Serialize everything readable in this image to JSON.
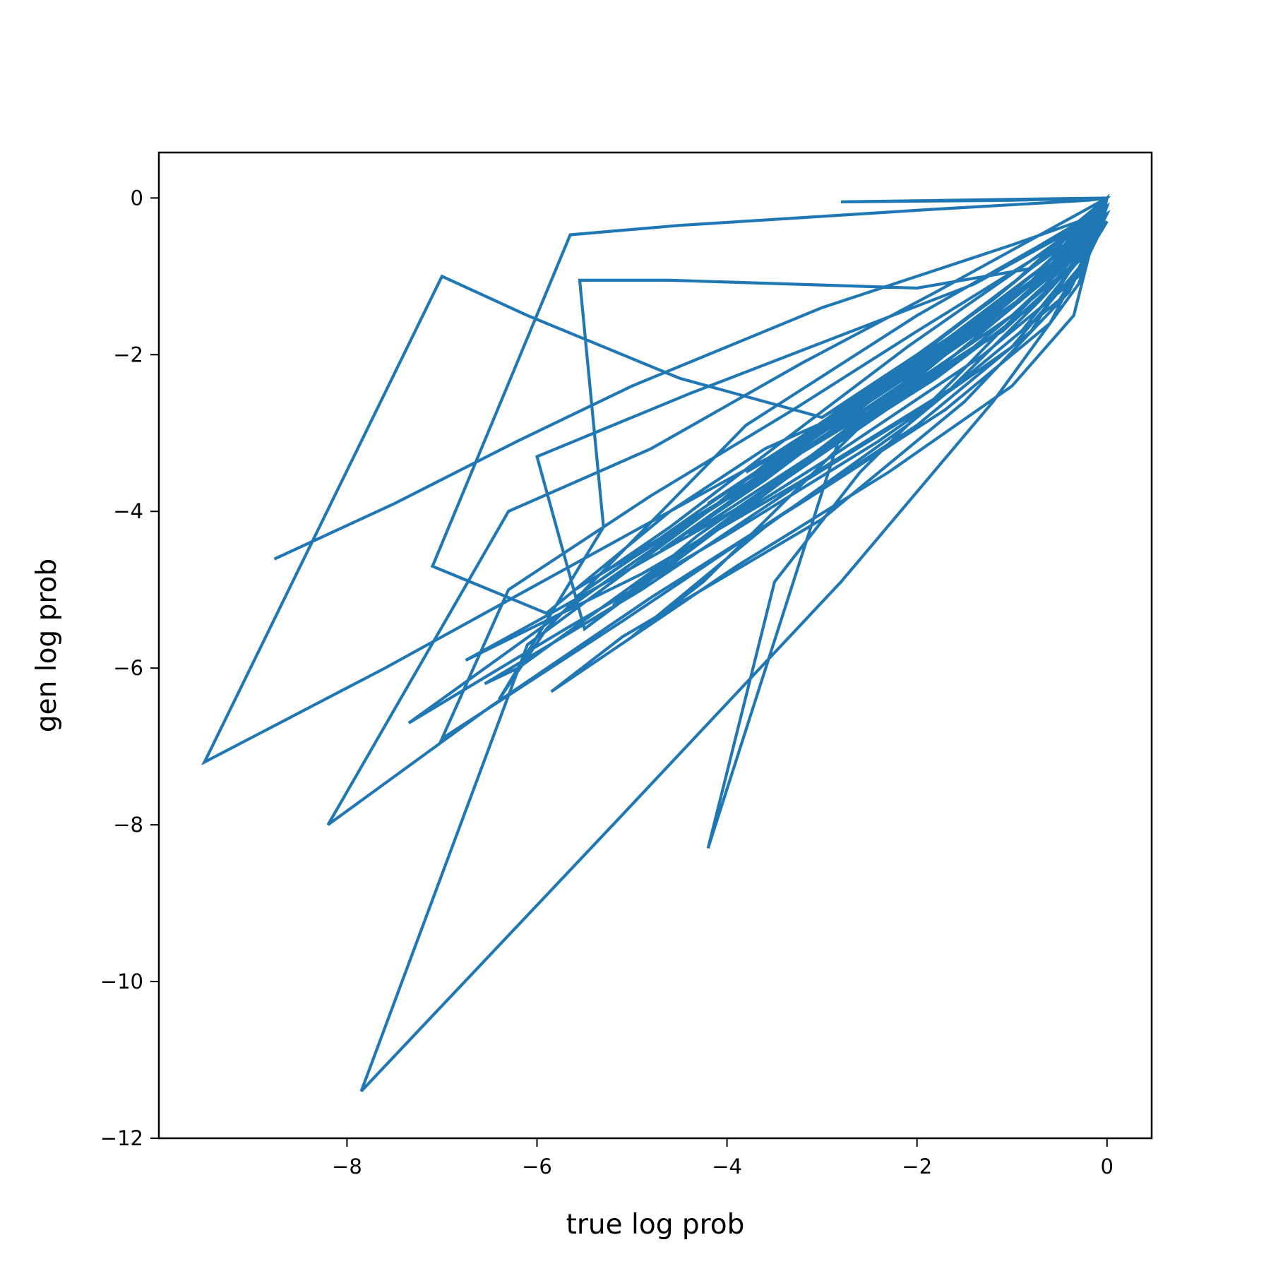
{
  "chart_data": {
    "type": "line",
    "title": "",
    "xlabel": "true log prob",
    "ylabel": "gen log prob",
    "xlim": [
      -9.98,
      0.47
    ],
    "ylim": [
      -12,
      0.58
    ],
    "x_ticks": [
      -8,
      -6,
      -4,
      -2,
      0
    ],
    "x_tick_labels": [
      "−8",
      "−6",
      "−4",
      "−2",
      "0"
    ],
    "y_ticks": [
      0,
      -2,
      -4,
      -6,
      -8,
      -10,
      -12
    ],
    "y_tick_labels": [
      "0",
      "−2",
      "−4",
      "−6",
      "−8",
      "−10",
      "−12"
    ],
    "grid": false,
    "legend": "none",
    "series": [
      {
        "color": "#1f77b4",
        "x": [
          -8.75,
          -7.5,
          -6.2,
          -5.0,
          -4.0,
          -3.0,
          -2.0,
          -1.0,
          -0.3,
          -0.1,
          0.0,
          -0.2,
          -0.7,
          -1.5,
          -2.5,
          -3.6,
          -4.6,
          -5.9,
          -7.1,
          -5.65,
          -4.5,
          -3.2,
          -1.9,
          -0.9,
          -0.2,
          0.0,
          -0.6,
          -1.8,
          -3.2,
          -4.8,
          -6.3,
          -8.2,
          -6.5,
          -4.8,
          -3.1,
          -1.7,
          -0.6,
          0.0,
          -0.4,
          -1.4,
          -2.8,
          -4.2,
          -3.5,
          -2.6,
          -1.6,
          -0.8,
          -0.1,
          0.0,
          -0.5,
          -1.5,
          -3.0,
          -4.5,
          -6.1,
          -7.0,
          -9.5,
          -7.6,
          -5.5,
          -3.7,
          -2.2,
          -1.0,
          -0.2,
          0.0,
          -0.9,
          -2.4,
          -4.2,
          -6.1,
          -7.85,
          -5.2,
          -2.8,
          -1.2,
          -0.3,
          0.0,
          -0.7,
          -2.0,
          -3.8,
          -5.9,
          -6.4,
          -5.3,
          -5.55,
          -4.6,
          -3.3,
          -2.0,
          -0.8,
          -0.1,
          -0.35,
          -1.0,
          -2.3,
          -3.9,
          -5.85,
          -5.1,
          -3.0,
          -1.5,
          -0.4,
          0.0,
          -0.8,
          -2.1,
          -3.3,
          -4.6,
          -5.2,
          -5.6,
          -4.1,
          -2.6,
          -1.1,
          -0.2,
          0.0,
          -0.6,
          -1.9,
          -3.5,
          -5.4,
          -7.35,
          -5.7,
          -4.0,
          -2.4,
          -1.0,
          -0.3,
          0.0,
          -0.6,
          -1.6,
          -2.7,
          -3.8,
          -6.0,
          -6.75,
          -4.9,
          -3.2,
          -1.6,
          -0.5,
          0.0,
          -1.1,
          -2.5,
          -4.25,
          -5.0,
          -3.6,
          -2.1,
          -0.9,
          -0.1,
          -0.3,
          -1.3,
          -2.9,
          -4.6,
          -6.2,
          -6.55,
          -4.9,
          -3.3,
          -1.7,
          -0.7,
          0.0,
          -0.4,
          -1.2,
          -2.2,
          -3.4,
          -4.5,
          -5.5,
          -6.0,
          -4.4,
          -2.9,
          -1.4,
          -0.5,
          0.0,
          -0.8,
          -2.0,
          -3.3,
          -4.8,
          -6.3,
          -7.0,
          -5.1,
          -3.5,
          -2.0,
          -0.8,
          0.0,
          -0.3,
          -1.6,
          -2.8,
          -4.0,
          -5.2,
          -4.3,
          -3.1,
          -1.8,
          -0.7,
          -0.1,
          0.0,
          -1.0,
          -2.4,
          -3.9,
          -4.4,
          -3.0,
          -1.6,
          -0.5,
          0.0,
          -0.7,
          -1.9,
          -3.1,
          -4.3,
          -5.6,
          -5.0,
          -3.7,
          -2.3,
          -1.1,
          -0.3,
          0.0,
          -0.6,
          -1.4,
          -2.5,
          -3.6,
          -4.7,
          -4.0,
          -2.8,
          -1.7,
          -0.8,
          -0.2,
          0.0,
          -0.9,
          -2.1,
          -3.4,
          -4.1,
          -3.0,
          -1.9,
          -0.9,
          -0.2,
          0.0,
          -0.5,
          -1.3,
          -2.3,
          -3.2,
          -4.2,
          -3.4,
          -2.4,
          -1.4,
          -0.6,
          0.0,
          -0.4,
          -1.2,
          -2.0,
          -2.9,
          -3.8,
          -3.1,
          -2.2,
          -1.3,
          -0.5,
          0.0,
          -0.3,
          -1.0,
          -1.8,
          -2.7,
          -3.5,
          -2.8,
          -1.9,
          -1.0,
          -0.3,
          0.0,
          -2.8,
          -1.0,
          0.0,
          -0.5,
          -1.2,
          -2.0,
          -3.0,
          -2.2,
          -1.3,
          -0.5,
          0.0
        ],
        "values": [
          -4.6,
          -3.9,
          -3.1,
          -2.4,
          -1.9,
          -1.4,
          -1.0,
          -0.6,
          -0.3,
          -0.1,
          0.0,
          -0.5,
          -1.1,
          -1.8,
          -2.6,
          -3.2,
          -4.0,
          -5.3,
          -4.7,
          -0.47,
          -0.35,
          -0.25,
          -0.15,
          -0.08,
          -0.03,
          0.0,
          -0.4,
          -1.2,
          -2.1,
          -3.2,
          -4.0,
          -8.0,
          -6.5,
          -5.1,
          -3.8,
          -2.7,
          -1.6,
          -0.2,
          -0.9,
          -1.9,
          -3.0,
          -8.3,
          -4.9,
          -3.5,
          -2.3,
          -1.3,
          -0.4,
          0.0,
          -0.8,
          -1.7,
          -2.8,
          -2.3,
          -1.5,
          -1.0,
          -7.2,
          -6.0,
          -4.6,
          -3.4,
          -2.5,
          -1.5,
          -0.6,
          0.0,
          -1.2,
          -2.6,
          -4.0,
          -5.7,
          -11.4,
          -8.0,
          -4.9,
          -2.6,
          -1.1,
          -0.1,
          -0.6,
          -1.5,
          -2.9,
          -5.5,
          -6.4,
          -4.2,
          -1.05,
          -1.05,
          -1.1,
          -1.15,
          -0.9,
          -0.3,
          -1.5,
          -2.4,
          -3.5,
          -4.7,
          -6.3,
          -5.6,
          -4.1,
          -2.6,
          -1.2,
          -0.2,
          -0.8,
          -1.9,
          -3.0,
          -4.2,
          -4.7,
          -5.0,
          -3.9,
          -2.8,
          -1.7,
          -0.7,
          -0.1,
          -0.9,
          -2.1,
          -3.4,
          -5.0,
          -6.7,
          -5.5,
          -4.3,
          -3.1,
          -1.9,
          -0.9,
          -0.2,
          -1.0,
          -2.0,
          -3.0,
          -3.9,
          -5.4,
          -5.9,
          -4.8,
          -3.6,
          -2.4,
          -1.3,
          -0.3,
          -1.4,
          -2.8,
          -4.9,
          -5.6,
          -4.2,
          -2.9,
          -1.7,
          -0.5,
          -1.0,
          -2.0,
          -3.3,
          -4.6,
          -6.0,
          -6.2,
          -5.0,
          -3.7,
          -2.5,
          -1.3,
          -0.2,
          -0.7,
          -1.6,
          -2.6,
          -3.6,
          -4.6,
          -5.5,
          -3.3,
          -2.5,
          -1.8,
          -1.1,
          -0.5,
          -0.1,
          -0.8,
          -1.7,
          -2.7,
          -3.8,
          -5.0,
          -6.9,
          -5.4,
          -4.1,
          -2.9,
          -1.7,
          -0.2,
          -0.6,
          -1.9,
          -3.0,
          -4.1,
          -5.2,
          -4.3,
          -3.3,
          -2.3,
          -1.3,
          -0.5,
          0.0,
          -1.1,
          -2.4,
          -3.8,
          -4.3,
          -3.2,
          -2.1,
          -1.0,
          -0.1,
          -0.9,
          -2.0,
          -3.0,
          -4.0,
          -5.1,
          -4.6,
          -3.6,
          -2.5,
          -1.5,
          -0.6,
          -0.1,
          -0.8,
          -1.6,
          -2.6,
          -3.6,
          -4.5,
          -3.9,
          -2.9,
          -2.0,
          -1.1,
          -0.4,
          0.0,
          -1.0,
          -2.1,
          -3.2,
          -3.9,
          -3.0,
          -2.1,
          -1.2,
          -0.4,
          0.0,
          -0.7,
          -1.5,
          -2.4,
          -3.1,
          -3.9,
          -3.3,
          -2.5,
          -1.7,
          -0.9,
          -0.1,
          -0.6,
          -1.4,
          -2.1,
          -2.8,
          -3.5,
          -3.0,
          -2.3,
          -1.6,
          -0.8,
          -0.1,
          -0.5,
          -1.2,
          -1.9,
          -2.6,
          -3.3,
          -2.7,
          -2.0,
          -1.3,
          -0.6,
          0.0,
          -0.05,
          -0.03,
          0.0,
          -0.6,
          -1.3,
          -2.0,
          -2.8,
          -2.2,
          -1.5,
          -0.8,
          -0.1
        ]
      }
    ]
  }
}
